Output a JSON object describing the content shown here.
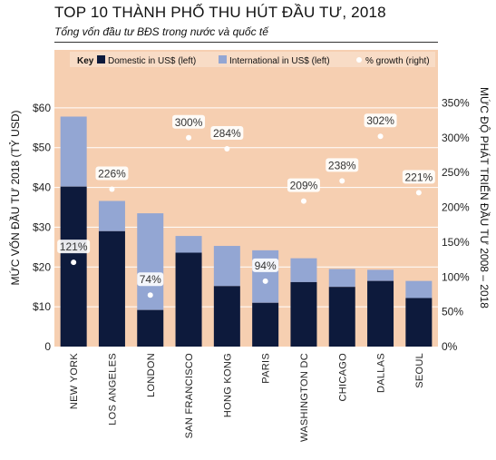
{
  "header": {
    "title": "TOP 10 THÀNH PHỐ THU HÚT ĐẦU TƯ, 2018",
    "subtitle": "Tổng vốn đầu tư BĐS trong nước và quốc tế"
  },
  "chart_data": {
    "type": "bar",
    "stacked": true,
    "categories": [
      "NEW YORK",
      "LOS ANGELES",
      "LONDON",
      "SAN FRANCISCO",
      "HONG KONG",
      "PARIS",
      "WASHINGTON DC",
      "CHICAGO",
      "DALLAS",
      "SEOUL"
    ],
    "series": [
      {
        "name": "Domestic in US$ (left)",
        "axis": "left",
        "color": "#0d1a3c",
        "values": [
          40.2,
          29.0,
          9.2,
          23.6,
          15.2,
          11.0,
          16.2,
          15.0,
          16.5,
          12.2
        ]
      },
      {
        "name": "International in US$ (left)",
        "axis": "left",
        "color": "#93a6d3",
        "values": [
          17.6,
          7.6,
          24.3,
          4.2,
          10.1,
          13.2,
          6.0,
          4.5,
          2.8,
          4.3
        ]
      },
      {
        "name": "% growth (right)",
        "axis": "right",
        "type": "scatter",
        "color": "#ffffff",
        "values": [
          121,
          226,
          74,
          300,
          284,
          94,
          209,
          238,
          302,
          221
        ],
        "labels": [
          "121%",
          "226%",
          "74%",
          "300%",
          "284%",
          "94%",
          "209%",
          "238%",
          "302%",
          "221%"
        ]
      }
    ],
    "legend": {
      "key_label": "Key",
      "position": "top"
    },
    "ylabel": "MỨC VỐN ĐẦU TƯ 2018 (TỶ USD)",
    "y2label": "MỨC ĐỘ PHÁT TRIỂN ĐẦU TƯ 2008 – 2018",
    "ylim": [
      0,
      70
    ],
    "yticks": [
      0,
      10,
      20,
      30,
      40,
      50,
      60
    ],
    "ytick_labels": [
      "0",
      "$10",
      "$20",
      "$30",
      "$40",
      "$50",
      "$60"
    ],
    "y2lim": [
      0,
      400
    ],
    "y2ticks": [
      0,
      50,
      100,
      150,
      200,
      250,
      300,
      350
    ],
    "y2tick_labels": [
      "0%",
      "50%",
      "100%",
      "150%",
      "200%",
      "250%",
      "300%",
      "350%"
    ],
    "grid": true,
    "colors": {
      "plot_background": "#f6cfb1",
      "grid": "#ffffff"
    }
  }
}
